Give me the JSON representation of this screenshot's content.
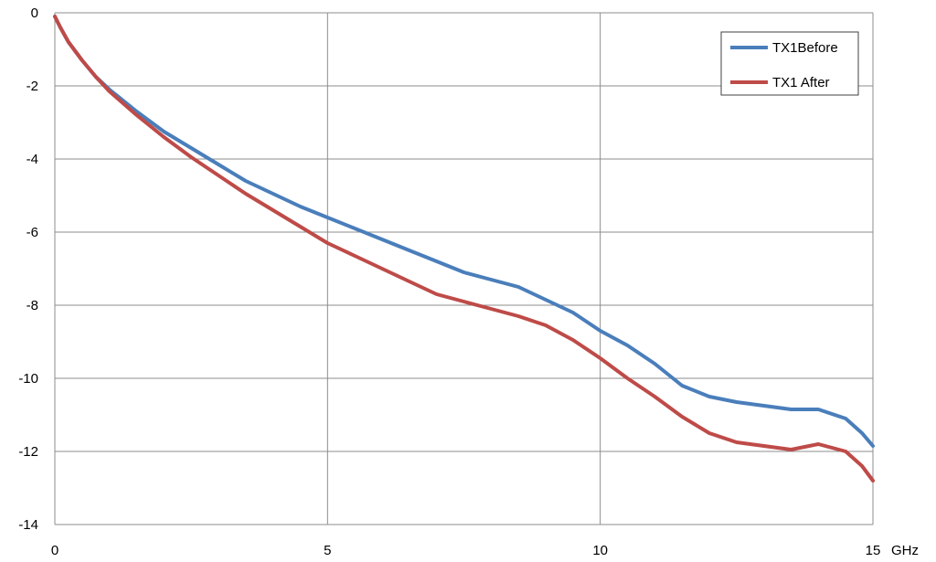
{
  "chart_data": {
    "type": "line",
    "title": "",
    "xlabel": "",
    "ylabel": "",
    "x_unit": "GHz",
    "xlim": [
      0,
      15
    ],
    "ylim": [
      -14,
      0
    ],
    "x_ticks": [
      0,
      5,
      10,
      15
    ],
    "y_ticks": [
      0,
      -2,
      -4,
      -6,
      -8,
      -10,
      -12,
      -14
    ],
    "grid": true,
    "legend_position": "top-right",
    "series": [
      {
        "name": "TX1Before",
        "color": "#4a7ebb",
        "x": [
          0,
          0.1,
          0.25,
          0.5,
          0.75,
          1,
          1.5,
          2,
          2.5,
          3,
          3.5,
          4,
          4.5,
          5,
          5.5,
          6,
          6.5,
          7,
          7.5,
          8,
          8.5,
          9,
          9.5,
          10,
          10.5,
          11,
          11.5,
          12,
          12.5,
          13,
          13.5,
          14,
          14.5,
          14.8,
          15
        ],
        "y": [
          -0.1,
          -0.4,
          -0.8,
          -1.3,
          -1.75,
          -2.1,
          -2.7,
          -3.25,
          -3.7,
          -4.15,
          -4.6,
          -4.95,
          -5.3,
          -5.6,
          -5.9,
          -6.2,
          -6.5,
          -6.8,
          -7.1,
          -7.3,
          -7.5,
          -7.85,
          -8.2,
          -8.7,
          -9.1,
          -9.6,
          -10.2,
          -10.5,
          -10.65,
          -10.75,
          -10.85,
          -10.85,
          -11.1,
          -11.5,
          -11.85
        ]
      },
      {
        "name": "TX1 After",
        "color": "#be4b48",
        "x": [
          0,
          0.1,
          0.25,
          0.5,
          0.75,
          1,
          1.5,
          2,
          2.5,
          3,
          3.5,
          4,
          4.5,
          5,
          5.5,
          6,
          6.5,
          7,
          7.5,
          8,
          8.5,
          9,
          9.5,
          10,
          10.5,
          11,
          11.5,
          12,
          12.5,
          13,
          13.5,
          14,
          14.5,
          14.8,
          15
        ],
        "y": [
          -0.1,
          -0.4,
          -0.8,
          -1.3,
          -1.75,
          -2.15,
          -2.8,
          -3.4,
          -3.95,
          -4.45,
          -4.95,
          -5.4,
          -5.85,
          -6.3,
          -6.65,
          -7.0,
          -7.35,
          -7.7,
          -7.9,
          -8.1,
          -8.3,
          -8.55,
          -8.95,
          -9.45,
          -10.0,
          -10.5,
          -11.05,
          -11.5,
          -11.75,
          -11.85,
          -11.95,
          -11.8,
          -12.0,
          -12.4,
          -12.8
        ]
      }
    ]
  }
}
